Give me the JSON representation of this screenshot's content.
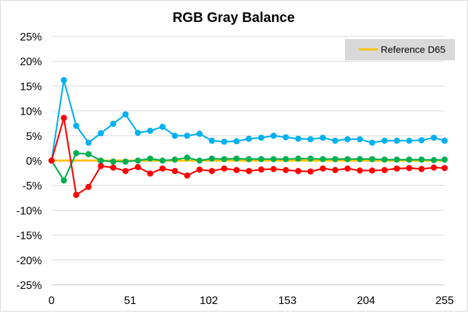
{
  "chart_data": {
    "type": "line",
    "title": "RGB Gray Balance",
    "x_ticks": [
      0,
      51,
      102,
      153,
      204,
      255
    ],
    "y_ticks": [
      -25,
      -20,
      -15,
      -10,
      -5,
      0,
      5,
      10,
      15,
      20,
      25
    ],
    "y_tick_labels": [
      "-25%",
      "-20%",
      "-15%",
      "-10%",
      "-5%",
      "0%",
      "5%",
      "10%",
      "15%",
      "20%",
      "25%"
    ],
    "xlim": [
      0,
      255
    ],
    "ylim": [
      -25,
      25
    ],
    "grid": "horizontal",
    "legend_position": "top-right",
    "x": [
      0,
      8,
      16,
      24,
      32,
      40,
      48,
      56,
      64,
      72,
      80,
      88,
      96,
      104,
      112,
      120,
      128,
      136,
      144,
      152,
      160,
      168,
      176,
      184,
      192,
      200,
      208,
      216,
      224,
      232,
      240,
      248,
      255
    ],
    "series": [
      {
        "name": "Reference D65",
        "color": "#FFC000",
        "marker": false,
        "values": [
          0,
          0,
          0,
          0,
          0,
          0,
          0,
          0,
          0,
          0,
          0,
          0,
          0,
          0,
          0,
          0,
          0,
          0,
          0,
          0,
          0,
          0,
          0,
          0,
          0,
          0,
          0,
          0,
          0,
          0,
          0,
          0,
          0
        ]
      },
      {
        "name": "",
        "color": "#00B0F0",
        "marker": true,
        "values": [
          0,
          16.2,
          7.0,
          3.6,
          5.5,
          7.4,
          9.3,
          5.6,
          6.0,
          6.8,
          5.0,
          5.0,
          5.4,
          4.0,
          3.8,
          3.9,
          4.4,
          4.6,
          5.0,
          4.7,
          4.4,
          4.3,
          4.6,
          4.0,
          4.3,
          4.3,
          3.6,
          4.0,
          4.0,
          4.0,
          4.1,
          4.6,
          4.0
        ]
      },
      {
        "name": "",
        "color": "#00B050",
        "marker": true,
        "values": [
          0,
          -4.0,
          1.5,
          1.3,
          0,
          -0.2,
          -0.2,
          0,
          0.4,
          0,
          0.2,
          0.6,
          0,
          0.4,
          0.3,
          0.4,
          0.3,
          0.3,
          0.3,
          0.3,
          0.4,
          0.4,
          0.3,
          0.3,
          0.3,
          0.3,
          0.3,
          0.2,
          0.2,
          0.2,
          0.2,
          0.1,
          0.2
        ]
      },
      {
        "name": "",
        "color": "#FF0000",
        "marker": true,
        "values": [
          0,
          8.6,
          -6.9,
          -5.3,
          -1.1,
          -1.4,
          -2.1,
          -1.3,
          -2.6,
          -1.6,
          -2.1,
          -3.0,
          -1.8,
          -2.1,
          -1.6,
          -1.9,
          -2.1,
          -1.8,
          -1.7,
          -1.9,
          -2.1,
          -2.2,
          -1.6,
          -1.9,
          -1.6,
          -2.0,
          -2.0,
          -1.9,
          -1.6,
          -1.5,
          -1.7,
          -1.4,
          -1.5
        ]
      }
    ]
  }
}
